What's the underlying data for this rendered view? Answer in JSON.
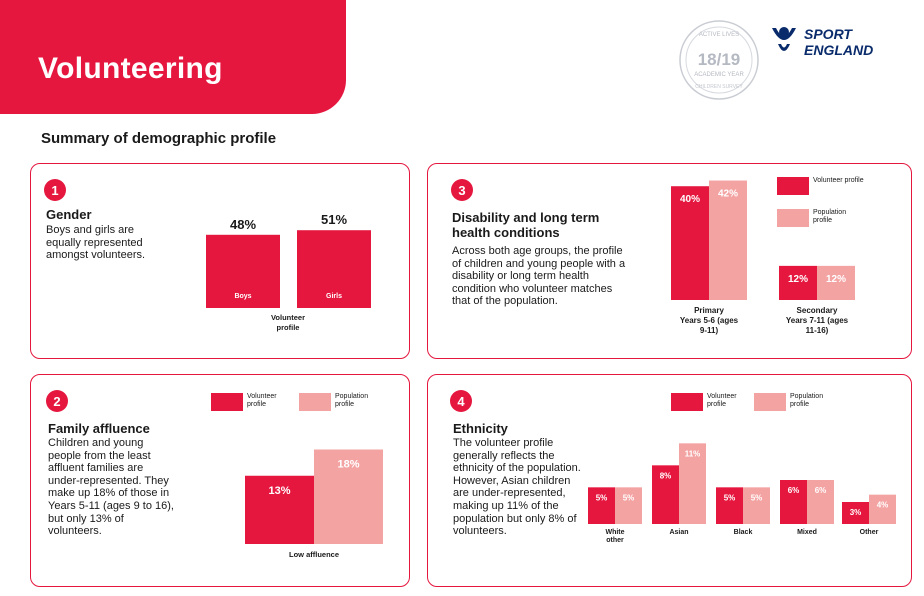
{
  "page": {
    "title": "Volunteering",
    "subtitle": "Summary of demographic profile",
    "seal_text": {
      "top": "ACTIVE LIVES",
      "years": "18/19",
      "middle": "ACADEMIC YEAR",
      "bottom": "CHILDREN SURVEY"
    },
    "brand": {
      "line1": "SPORT",
      "line2": "ENGLAND"
    }
  },
  "colors": {
    "volunteer": "#e5173f",
    "population": "#f4a3a3",
    "accent": "#e5173f"
  },
  "panels": {
    "gender": {
      "number": "1",
      "heading": "Gender",
      "text": "Boys and girls are equally represented amongst volunteers."
    },
    "affluence": {
      "number": "2",
      "heading": "Family affluence",
      "text": "Children and young people from the least affluent families are under-represented. They make up 18% of those in Years 5-11 (ages 9 to 16), but only 13% of volunteers."
    },
    "disability": {
      "number": "3",
      "heading": "Disability and long term health conditions",
      "text": "Across both age groups, the profile of children and young people with a disability or long term health condition who volunteer matches that of the population."
    },
    "ethnicity": {
      "number": "4",
      "heading": "Ethnicity",
      "text": "The volunteer profile generally reflects the ethnicity of the population. However, Asian children are under-represented, making up 11% of the population but only 8% of volunteers."
    }
  },
  "chart_data": [
    {
      "id": "gender",
      "type": "bar",
      "categories": [
        "Boys",
        "Girls"
      ],
      "series": [
        {
          "name": "",
          "values": [
            48,
            51
          ]
        }
      ],
      "value_labels": [
        "48%",
        "51%"
      ],
      "xlabel": "Volunteer profile",
      "ylim": [
        0,
        60
      ],
      "grid": false,
      "legend": "none"
    },
    {
      "id": "affluence",
      "type": "bar",
      "categories": [
        "Low affluence"
      ],
      "series": [
        {
          "name": "Volunteer profile",
          "values": [
            13
          ]
        },
        {
          "name": "Population profile",
          "values": [
            18
          ]
        }
      ],
      "value_labels": [
        [
          "13%"
        ],
        [
          "18%"
        ]
      ],
      "ylim": [
        0,
        20
      ],
      "grid": false,
      "legend": "top"
    },
    {
      "id": "disability",
      "type": "bar",
      "categories": [
        "Primary Years 5-6 (ages 9-11)",
        "Secondary Years 7-11 (ages 11-16)"
      ],
      "series": [
        {
          "name": "Volunteer profile",
          "values": [
            40,
            12
          ]
        },
        {
          "name": "Population profile",
          "values": [
            42,
            12
          ]
        }
      ],
      "value_labels": [
        [
          "40%",
          "12%"
        ],
        [
          "42%",
          "12%"
        ]
      ],
      "ylim": [
        0,
        45
      ],
      "grid": false,
      "legend": "right"
    },
    {
      "id": "ethnicity",
      "type": "bar",
      "categories": [
        "White other",
        "Asian",
        "Black",
        "Mixed",
        "Other"
      ],
      "series": [
        {
          "name": "Volunteer profile",
          "values": [
            5,
            8,
            5,
            6,
            3
          ]
        },
        {
          "name": "Population profile",
          "values": [
            5,
            11,
            5,
            6,
            4
          ]
        }
      ],
      "value_labels": [
        [
          "5%",
          "8%",
          "5%",
          "6%",
          "3%"
        ],
        [
          "5%",
          "11%",
          "5%",
          "6%",
          "4%"
        ]
      ],
      "ylim": [
        0,
        12
      ],
      "grid": false,
      "legend": "top"
    }
  ]
}
